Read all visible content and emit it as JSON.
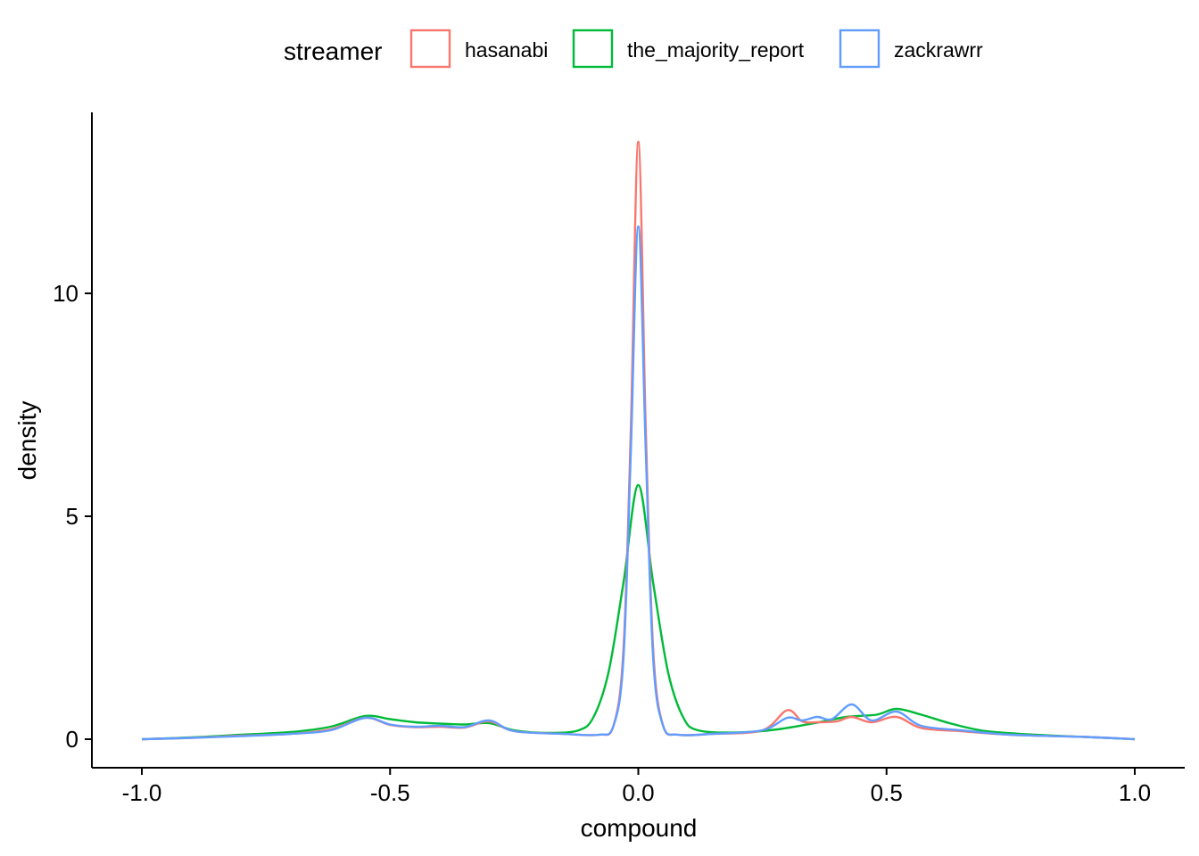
{
  "chart_data": {
    "type": "line",
    "xlabel": "compound",
    "ylabel": "density",
    "xlim": [
      -1.0,
      1.0
    ],
    "ylim": [
      0,
      13.5
    ],
    "x_ticks": [
      -1.0,
      -0.5,
      0.0,
      0.5,
      1.0
    ],
    "x_tick_labels": [
      "-1.0",
      "-0.5",
      "0.0",
      "0.5",
      "1.0"
    ],
    "y_ticks": [
      0,
      5,
      10
    ],
    "y_tick_labels": [
      "0",
      "5",
      "10"
    ],
    "grid": false,
    "legend": {
      "title": "streamer",
      "position": "top"
    },
    "series": [
      {
        "name": "hasanabi",
        "color": "#F8766D",
        "points": [
          [
            -1.0,
            0.0
          ],
          [
            -0.9,
            0.03
          ],
          [
            -0.8,
            0.08
          ],
          [
            -0.7,
            0.12
          ],
          [
            -0.62,
            0.22
          ],
          [
            -0.55,
            0.48
          ],
          [
            -0.5,
            0.32
          ],
          [
            -0.45,
            0.27
          ],
          [
            -0.4,
            0.28
          ],
          [
            -0.35,
            0.26
          ],
          [
            -0.3,
            0.4
          ],
          [
            -0.25,
            0.18
          ],
          [
            -0.15,
            0.12
          ],
          [
            -0.08,
            0.1
          ],
          [
            -0.05,
            0.3
          ],
          [
            -0.03,
            2.0
          ],
          [
            -0.015,
            7.0
          ],
          [
            0.0,
            13.4
          ],
          [
            0.015,
            7.0
          ],
          [
            0.03,
            2.0
          ],
          [
            0.05,
            0.3
          ],
          [
            0.08,
            0.1
          ],
          [
            0.15,
            0.12
          ],
          [
            0.25,
            0.2
          ],
          [
            0.3,
            0.65
          ],
          [
            0.33,
            0.4
          ],
          [
            0.36,
            0.38
          ],
          [
            0.4,
            0.4
          ],
          [
            0.43,
            0.5
          ],
          [
            0.47,
            0.38
          ],
          [
            0.52,
            0.5
          ],
          [
            0.57,
            0.25
          ],
          [
            0.65,
            0.18
          ],
          [
            0.75,
            0.1
          ],
          [
            0.9,
            0.05
          ],
          [
            1.0,
            0.0
          ]
        ]
      },
      {
        "name": "the_majority_report",
        "color": "#00BA38",
        "points": [
          [
            -1.0,
            0.0
          ],
          [
            -0.9,
            0.04
          ],
          [
            -0.8,
            0.1
          ],
          [
            -0.7,
            0.16
          ],
          [
            -0.62,
            0.28
          ],
          [
            -0.55,
            0.52
          ],
          [
            -0.5,
            0.45
          ],
          [
            -0.45,
            0.38
          ],
          [
            -0.4,
            0.35
          ],
          [
            -0.35,
            0.33
          ],
          [
            -0.3,
            0.36
          ],
          [
            -0.25,
            0.2
          ],
          [
            -0.18,
            0.14
          ],
          [
            -0.12,
            0.2
          ],
          [
            -0.09,
            0.5
          ],
          [
            -0.06,
            1.5
          ],
          [
            -0.03,
            3.5
          ],
          [
            0.0,
            5.7
          ],
          [
            0.03,
            3.5
          ],
          [
            0.06,
            1.5
          ],
          [
            0.09,
            0.5
          ],
          [
            0.12,
            0.2
          ],
          [
            0.2,
            0.15
          ],
          [
            0.28,
            0.22
          ],
          [
            0.35,
            0.35
          ],
          [
            0.42,
            0.5
          ],
          [
            0.48,
            0.55
          ],
          [
            0.52,
            0.68
          ],
          [
            0.57,
            0.55
          ],
          [
            0.63,
            0.35
          ],
          [
            0.7,
            0.18
          ],
          [
            0.8,
            0.1
          ],
          [
            0.9,
            0.05
          ],
          [
            1.0,
            0.0
          ]
        ]
      },
      {
        "name": "zackrawrr",
        "color": "#619CFF",
        "points": [
          [
            -1.0,
            0.0
          ],
          [
            -0.9,
            0.03
          ],
          [
            -0.8,
            0.07
          ],
          [
            -0.7,
            0.12
          ],
          [
            -0.62,
            0.2
          ],
          [
            -0.55,
            0.48
          ],
          [
            -0.5,
            0.33
          ],
          [
            -0.45,
            0.28
          ],
          [
            -0.4,
            0.3
          ],
          [
            -0.35,
            0.27
          ],
          [
            -0.3,
            0.42
          ],
          [
            -0.25,
            0.18
          ],
          [
            -0.15,
            0.12
          ],
          [
            -0.08,
            0.1
          ],
          [
            -0.05,
            0.3
          ],
          [
            -0.03,
            1.8
          ],
          [
            -0.015,
            6.5
          ],
          [
            0.0,
            11.5
          ],
          [
            0.015,
            6.5
          ],
          [
            0.03,
            1.8
          ],
          [
            0.05,
            0.3
          ],
          [
            0.08,
            0.1
          ],
          [
            0.15,
            0.12
          ],
          [
            0.25,
            0.2
          ],
          [
            0.3,
            0.48
          ],
          [
            0.33,
            0.42
          ],
          [
            0.36,
            0.5
          ],
          [
            0.39,
            0.45
          ],
          [
            0.43,
            0.78
          ],
          [
            0.47,
            0.42
          ],
          [
            0.52,
            0.62
          ],
          [
            0.57,
            0.3
          ],
          [
            0.65,
            0.2
          ],
          [
            0.75,
            0.1
          ],
          [
            0.9,
            0.05
          ],
          [
            1.0,
            0.0
          ]
        ]
      }
    ]
  }
}
